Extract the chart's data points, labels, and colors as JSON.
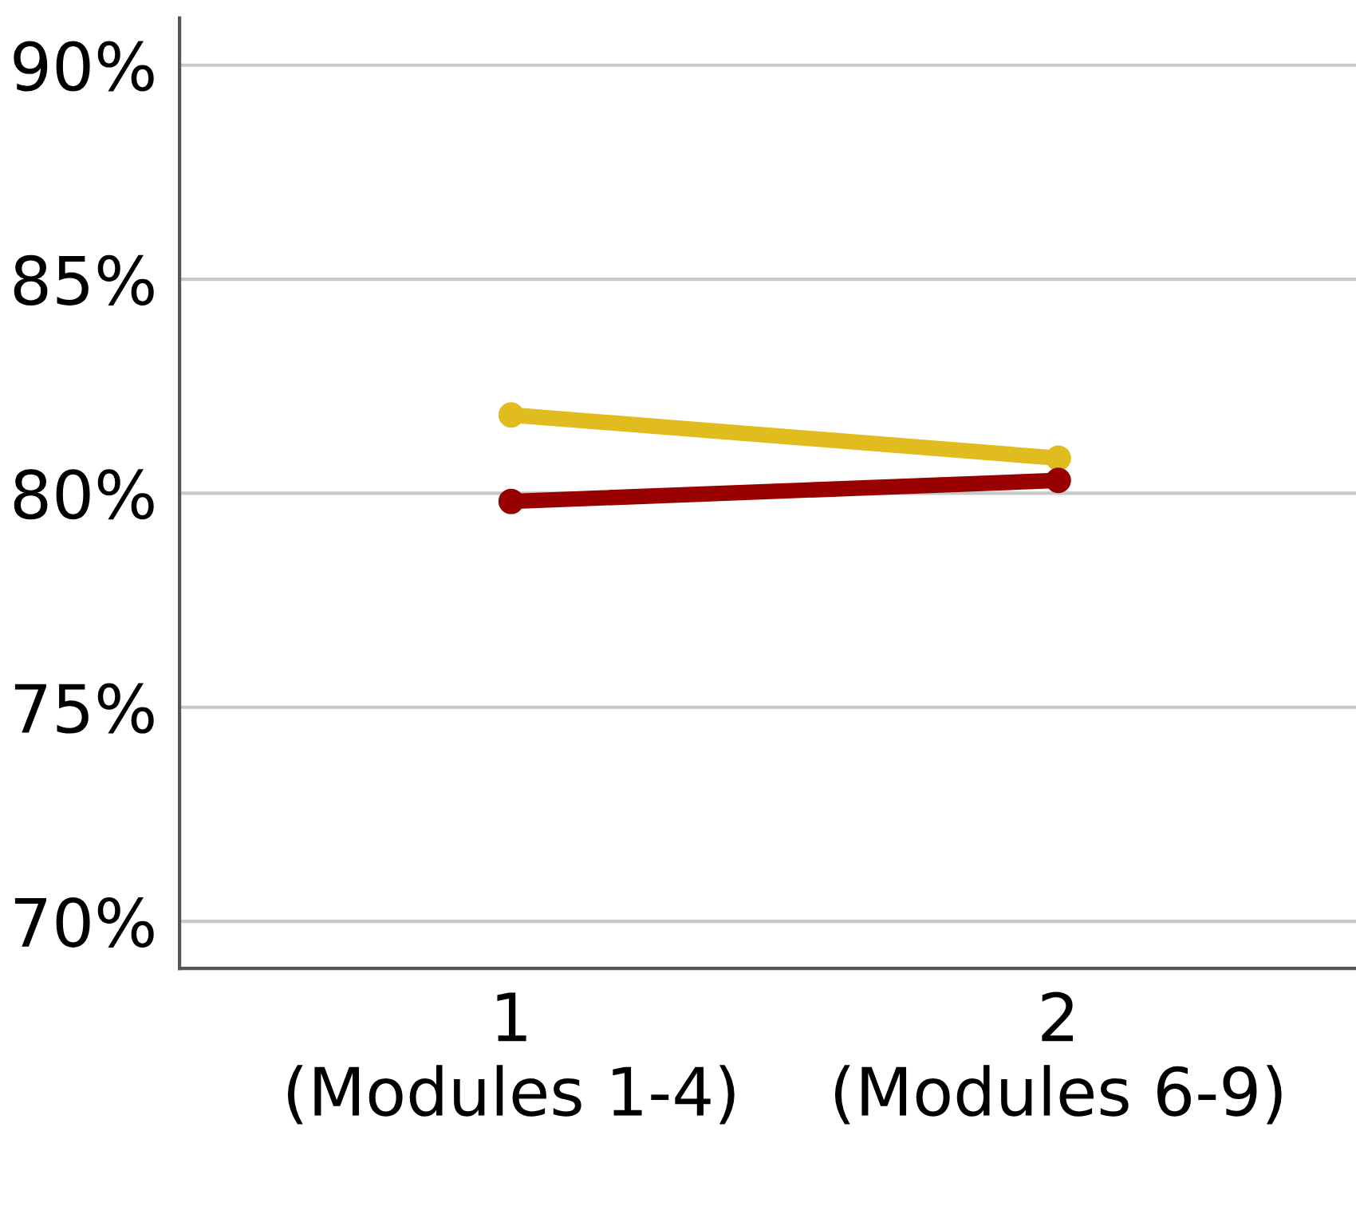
{
  "chart_data": {
    "type": "line",
    "categories": [
      "1\n(Modules 1-4)",
      "2\n(Modules 6-9)"
    ],
    "series": [
      {
        "color": "#e0bc1e",
        "values": [
          81.83,
          80.82
        ]
      },
      {
        "color": "#990000",
        "values": [
          79.81,
          80.3
        ]
      }
    ],
    "ylim": [
      68.9,
      91.1
    ],
    "yticks": [
      {
        "value": 70,
        "label": "70%"
      },
      {
        "value": 75,
        "label": "75%"
      },
      {
        "value": 80,
        "label": "80%"
      },
      {
        "value": 85,
        "label": "85%"
      },
      {
        "value": 90,
        "label": "90%"
      }
    ],
    "grid": "y",
    "legend": false,
    "marker": "circle",
    "line_style": "solid"
  }
}
